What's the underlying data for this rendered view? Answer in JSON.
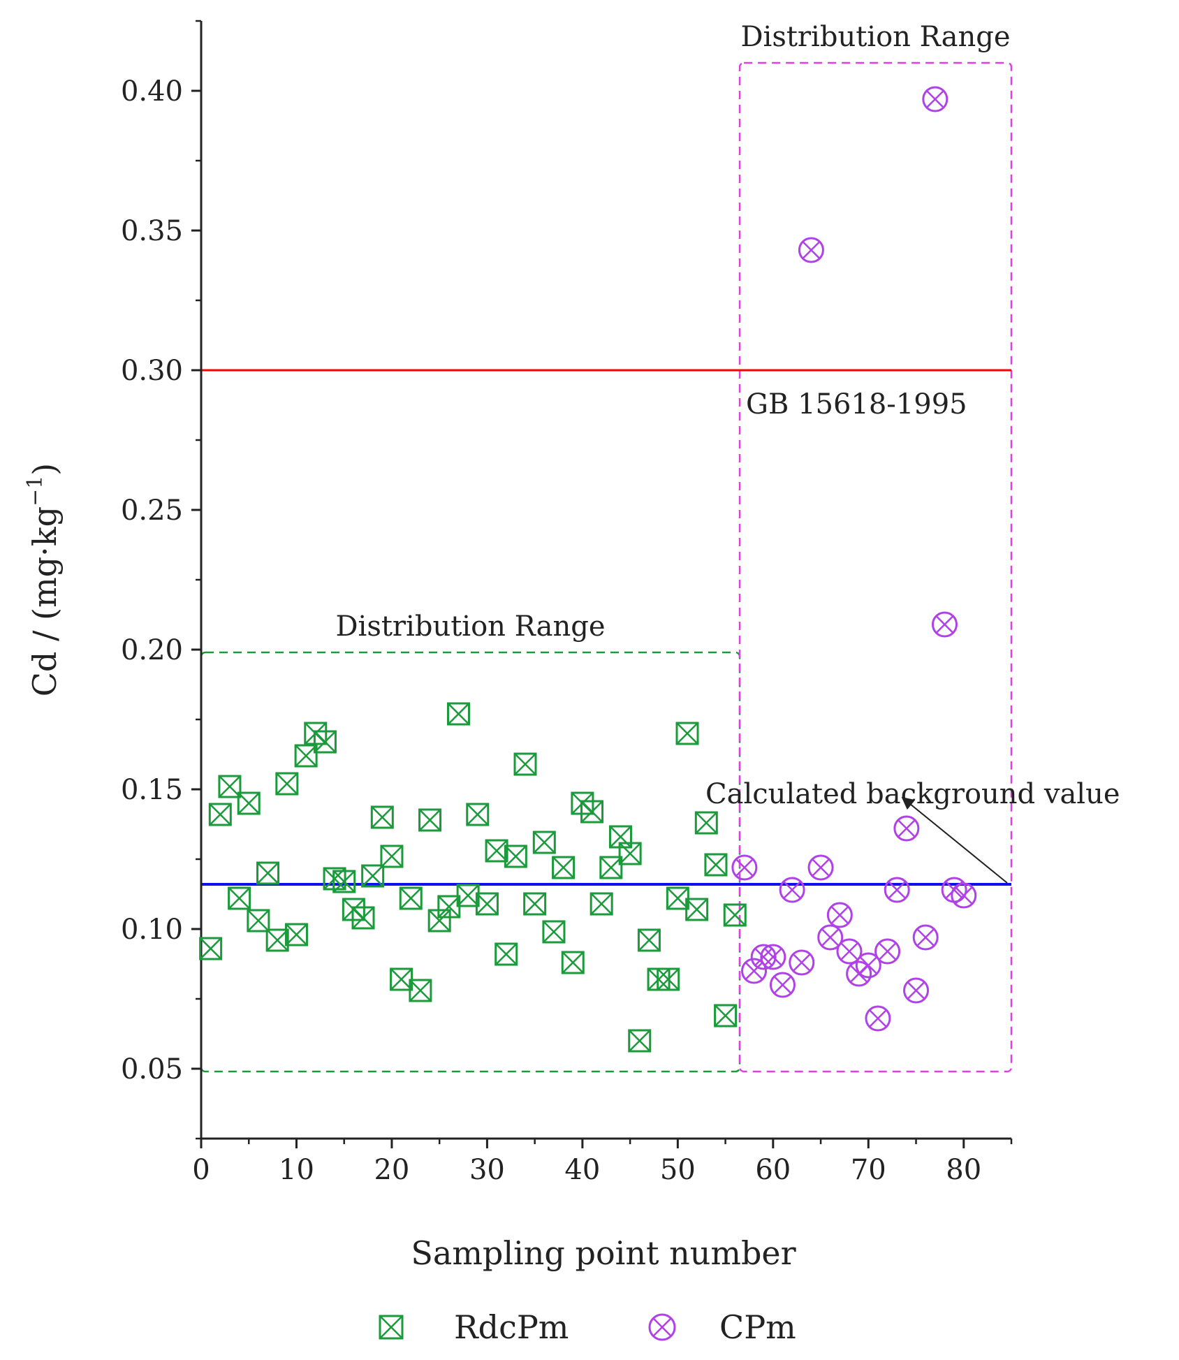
{
  "chart_data": {
    "type": "scatter",
    "xlabel": "Sampling point number",
    "ylabel_main": "Cd / (mg·kg",
    "ylabel_sup": "−1",
    "ylabel_close": ")",
    "xlim": [
      0,
      85
    ],
    "ylim": [
      0.025,
      0.425
    ],
    "xticks": [
      0,
      10,
      20,
      30,
      40,
      50,
      60,
      70,
      80
    ],
    "yticks": [
      0.05,
      0.1,
      0.15,
      0.2,
      0.25,
      0.3,
      0.35,
      0.4
    ],
    "grid": false,
    "legend_position": "bottom",
    "colors": {
      "rdcpm": "#1a9a3a",
      "cpm": "#b040e8",
      "standard": "#ff0000",
      "background": "#1010ee",
      "box_rdcpm": "#1a9a3a",
      "box_cpm": "#e040e0",
      "arrow": "#222222"
    },
    "reference_lines": [
      {
        "name": "standard",
        "y": 0.3,
        "label": "GB 15618-1995"
      },
      {
        "name": "background",
        "y": 0.116,
        "label": "Calculated background value"
      }
    ],
    "ranges": [
      {
        "name": "rdcpm-range",
        "x": [
          0,
          56.5
        ],
        "y": [
          0.049,
          0.199
        ],
        "label": "Distribution Range"
      },
      {
        "name": "cpm-range",
        "x": [
          56.5,
          85
        ],
        "y": [
          0.049,
          0.41
        ],
        "label": "Distribution Range"
      }
    ],
    "series": [
      {
        "name": "RdcPm",
        "marker": "square-x",
        "x": [
          1,
          2,
          3,
          4,
          5,
          6,
          7,
          8,
          9,
          10,
          11,
          12,
          13,
          14,
          15,
          16,
          17,
          18,
          19,
          20,
          21,
          22,
          23,
          24,
          25,
          26,
          27,
          28,
          29,
          30,
          31,
          32,
          33,
          34,
          35,
          36,
          37,
          38,
          39,
          40,
          41,
          42,
          43,
          44,
          45,
          46,
          47,
          48,
          49,
          50,
          51,
          52,
          53,
          54,
          55,
          56
        ],
        "y": [
          0.093,
          0.141,
          0.151,
          0.111,
          0.145,
          0.103,
          0.12,
          0.096,
          0.152,
          0.098,
          0.162,
          0.17,
          0.167,
          0.118,
          0.117,
          0.107,
          0.104,
          0.119,
          0.14,
          0.126,
          0.082,
          0.111,
          0.078,
          0.139,
          0.103,
          0.108,
          0.177,
          0.112,
          0.141,
          0.109,
          0.128,
          0.091,
          0.126,
          0.159,
          0.109,
          0.131,
          0.099,
          0.122,
          0.088,
          0.145,
          0.142,
          0.109,
          0.122,
          0.133,
          0.127,
          0.06,
          0.096,
          0.082,
          0.082,
          0.111,
          0.17,
          0.107,
          0.138,
          0.123,
          0.069,
          0.105
        ]
      },
      {
        "name": "CPm",
        "marker": "circle-x",
        "x": [
          57,
          58,
          59,
          60,
          61,
          62,
          63,
          64,
          65,
          66,
          67,
          68,
          69,
          70,
          71,
          72,
          73,
          74,
          75,
          76,
          77,
          78,
          79,
          80
        ],
        "y": [
          0.122,
          0.085,
          0.09,
          0.09,
          0.08,
          0.114,
          0.088,
          0.343,
          0.122,
          0.097,
          0.105,
          0.092,
          0.084,
          0.087,
          0.068,
          0.092,
          0.114,
          0.136,
          0.078,
          0.097,
          0.397,
          0.209,
          0.114,
          0.112
        ]
      }
    ]
  }
}
